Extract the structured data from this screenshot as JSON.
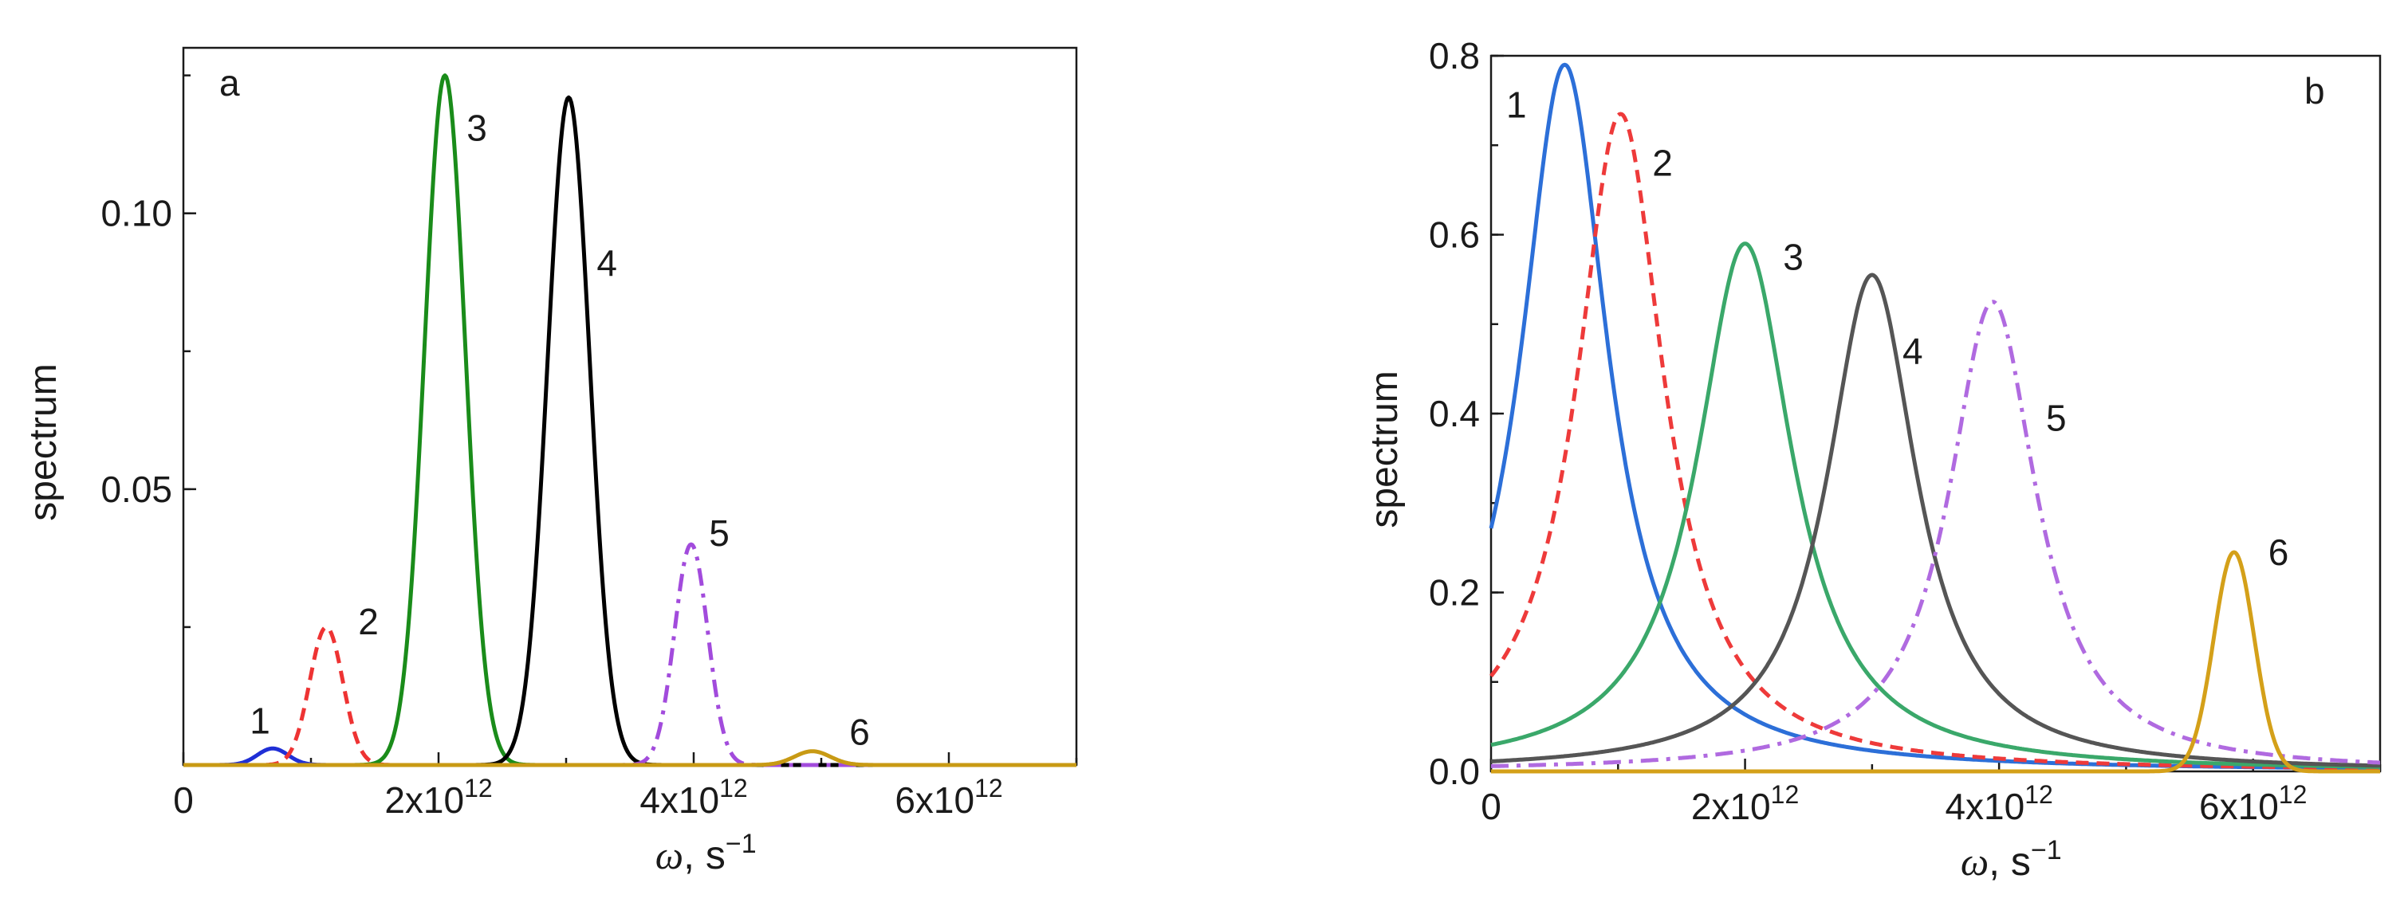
{
  "chart_data": [
    {
      "type": "line",
      "panel_label": "a",
      "xlabel": "ω, s",
      "xlabel_unit_power": "−1",
      "ylabel": "spectrum",
      "xlim": [
        0,
        7000000000000.0
      ],
      "ylim": [
        0,
        0.13
      ],
      "x_ticks": [
        {
          "value": 0,
          "base": "0",
          "exp": ""
        },
        {
          "value": 2000000000000.0,
          "base": "2x10",
          "exp": "12"
        },
        {
          "value": 4000000000000.0,
          "base": "4x10",
          "exp": "12"
        },
        {
          "value": 6000000000000.0,
          "base": "6x10",
          "exp": "12"
        }
      ],
      "y_ticks": [
        {
          "value": 0.05,
          "label": "0.05"
        },
        {
          "value": 0.1,
          "label": "0.10"
        }
      ],
      "series": [
        {
          "label": "1",
          "color": "#1f2fd6",
          "dash": "solid",
          "peak_x": 700000000000.0,
          "peak_y": 0.003,
          "width": 120000000000.0,
          "shape": "gauss",
          "label_x": 600000000000.0,
          "label_y": 0.008
        },
        {
          "label": "2",
          "color": "#ee3333",
          "dash": "dashed",
          "peak_x": 1120000000000.0,
          "peak_y": 0.025,
          "width": 130000000000.0,
          "shape": "gauss",
          "label_x": 1450000000000.0,
          "label_y": 0.026
        },
        {
          "label": "3",
          "color": "#1a8c1a",
          "dash": "solid",
          "peak_x": 2050000000000.0,
          "peak_y": 0.125,
          "width": 160000000000.0,
          "shape": "gauss",
          "label_x": 2300000000000.0,
          "label_y": 0.1155
        },
        {
          "label": "4",
          "color": "#000000",
          "dash": "solid",
          "peak_x": 3020000000000.0,
          "peak_y": 0.121,
          "width": 165000000000.0,
          "shape": "gauss",
          "label_x": 3320000000000.0,
          "label_y": 0.091
        },
        {
          "label": "5",
          "color": "#a24bdc",
          "dash": "dashdot",
          "peak_x": 3980000000000.0,
          "peak_y": 0.04,
          "width": 130000000000.0,
          "shape": "gauss",
          "label_x": 4200000000000.0,
          "label_y": 0.042
        },
        {
          "label": "6",
          "color": "#c89a14",
          "dash": "solid",
          "peak_x": 4930000000000.0,
          "peak_y": 0.0025,
          "width": 140000000000.0,
          "shape": "gauss",
          "label_x": 5300000000000.0,
          "label_y": 0.006
        }
      ]
    },
    {
      "type": "line",
      "panel_label": "b",
      "xlabel": "ω, s",
      "xlabel_unit_power": "−1",
      "ylabel": "spectrum",
      "xlim": [
        0,
        7000000000000.0
      ],
      "ylim": [
        0,
        0.8
      ],
      "x_ticks": [
        {
          "value": 0,
          "base": "0",
          "exp": ""
        },
        {
          "value": 2000000000000.0,
          "base": "2x10",
          "exp": "12"
        },
        {
          "value": 4000000000000.0,
          "base": "4x10",
          "exp": "12"
        },
        {
          "value": 6000000000000.0,
          "base": "6x10",
          "exp": "12"
        }
      ],
      "y_ticks": [
        {
          "value": 0.0,
          "label": "0.0"
        },
        {
          "value": 0.2,
          "label": "0.2"
        },
        {
          "value": 0.4,
          "label": "0.4"
        },
        {
          "value": 0.6,
          "label": "0.6"
        },
        {
          "value": 0.8,
          "label": "0.8"
        }
      ],
      "series": [
        {
          "label": "1",
          "color": "#2c6fd8",
          "dash": "solid",
          "peak_x": 580000000000.0,
          "peak_y": 0.79,
          "width": 420000000000.0,
          "shape": "lorentz",
          "label_x": 200000000000.0,
          "label_y": 0.745
        },
        {
          "label": "2",
          "color": "#ee3a3a",
          "dash": "dashed",
          "peak_x": 1020000000000.0,
          "peak_y": 0.735,
          "width": 420000000000.0,
          "shape": "lorentz",
          "label_x": 1350000000000.0,
          "label_y": 0.68
        },
        {
          "label": "3",
          "color": "#3aa86a",
          "dash": "solid",
          "peak_x": 2000000000000.0,
          "peak_y": 0.59,
          "width": 460000000000.0,
          "shape": "lorentz",
          "label_x": 2380000000000.0,
          "label_y": 0.575
        },
        {
          "label": "4",
          "color": "#555555",
          "dash": "solid",
          "peak_x": 3000000000000.0,
          "peak_y": 0.555,
          "width": 430000000000.0,
          "shape": "lorentz",
          "label_x": 3320000000000.0,
          "label_y": 0.47
        },
        {
          "label": "5",
          "color": "#b06ae0",
          "dash": "dashdot",
          "peak_x": 3950000000000.0,
          "peak_y": 0.525,
          "width": 420000000000.0,
          "shape": "lorentz",
          "label_x": 4450000000000.0,
          "label_y": 0.395
        },
        {
          "label": "6",
          "color": "#d4a019",
          "dash": "solid",
          "peak_x": 5850000000000.0,
          "peak_y": 0.245,
          "width": 160000000000.0,
          "shape": "gauss",
          "label_x": 6200000000000.0,
          "label_y": 0.245
        }
      ]
    }
  ]
}
